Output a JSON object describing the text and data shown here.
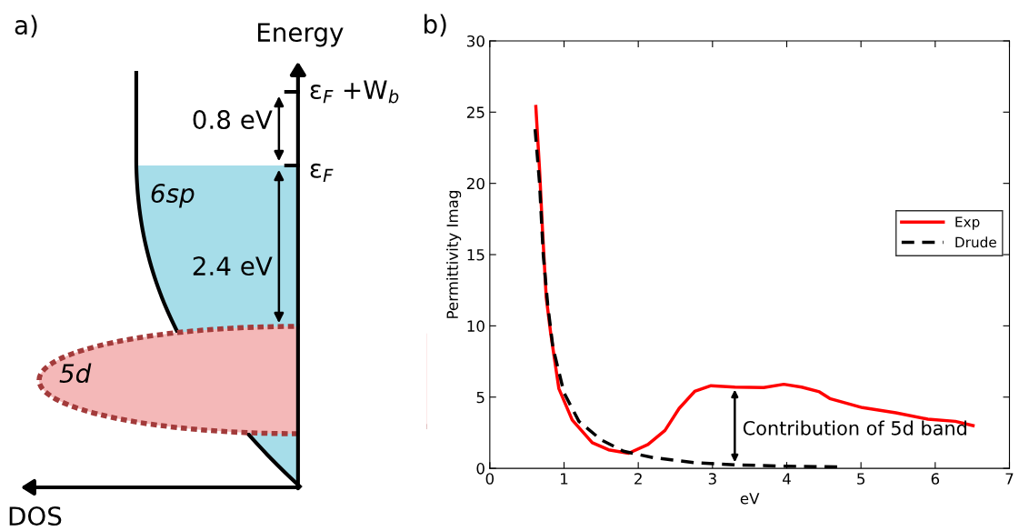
{
  "chart_data": [
    {
      "type": "other",
      "title": "a)",
      "annotations": [
        "Energy",
        "ε$_{F}$ +W$_{b}$",
        "0.8 eV",
        "ε$_{F}$",
        "6sp",
        "2.4 eV",
        "5d",
        "DOS"
      ]
    },
    {
      "type": "line",
      "title": "b)",
      "xlabel": "eV",
      "ylabel": "Permittivity Imag",
      "xlim": [
        0,
        7
      ],
      "xticks": [
        0,
        1,
        2,
        3,
        4,
        5,
        6,
        7
      ],
      "ylim": [
        0,
        30
      ],
      "yticks": [
        0,
        5,
        10,
        15,
        20,
        25,
        30
      ],
      "grid": false,
      "legend": "right",
      "series": [
        {
          "name": "Exp",
          "color": "#ff0000",
          "line_style": "solid",
          "x": [
            0.62,
            0.67,
            0.71,
            0.76,
            0.82,
            0.93,
            1.11,
            1.38,
            1.6,
            1.87,
            2.13,
            2.36,
            2.55,
            2.76,
            2.98,
            3.3,
            3.69,
            3.96,
            4.2,
            4.44,
            4.58,
            5.02,
            5.47,
            5.9,
            6.27,
            6.51
          ],
          "values": [
            25.4,
            21,
            16.7,
            12,
            9.5,
            5.6,
            3.4,
            1.8,
            1.3,
            1.06,
            1.67,
            2.66,
            4.2,
            5.4,
            5.8,
            5.7,
            5.67,
            5.9,
            5.7,
            5.37,
            4.9,
            4.26,
            3.9,
            3.45,
            3.3,
            3.0
          ]
        },
        {
          "name": "Drude",
          "color": "#000000",
          "line_style": "dashed",
          "x": [
            0.61,
            0.67,
            0.72,
            0.78,
            0.85,
            1.0,
            1.2,
            1.5,
            1.8,
            2.2,
            2.76,
            3.3,
            4.0,
            4.7
          ],
          "values": [
            23.8,
            20,
            15,
            11.5,
            8.5,
            5.3,
            3.3,
            2,
            1.2,
            0.75,
            0.4,
            0.25,
            0.15,
            0.1
          ]
        }
      ],
      "annotations": [
        "Contribution of 5d band"
      ]
    }
  ]
}
